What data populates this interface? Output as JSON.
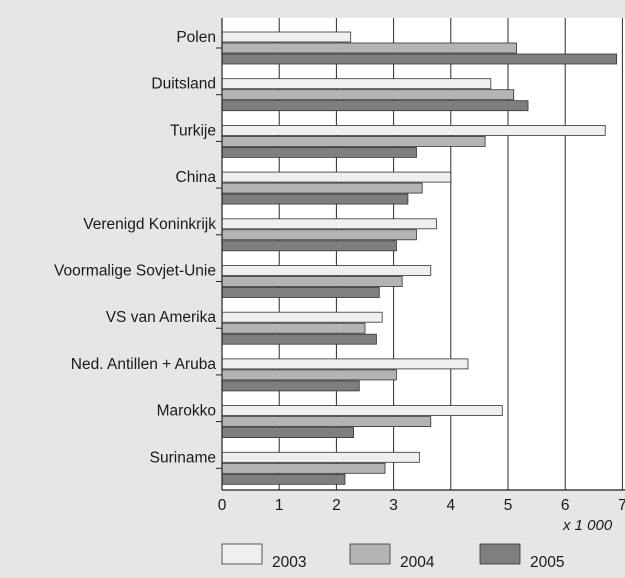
{
  "chart_data": {
    "type": "bar",
    "orientation": "horizontal",
    "categories": [
      "Polen",
      "Duitsland",
      "Turkije",
      "China",
      "Verenigd Koninkrijk",
      "Voormalige Sovjet-Unie",
      "VS van Amerika",
      "Ned. Antillen + Aruba",
      "Marokko",
      "Suriname"
    ],
    "series": [
      {
        "name": "2003",
        "color": "#efefef",
        "values": [
          2.25,
          4.7,
          6.7,
          4.0,
          3.75,
          3.65,
          2.8,
          4.3,
          4.9,
          3.45
        ]
      },
      {
        "name": "2004",
        "color": "#b4b4b4",
        "values": [
          5.15,
          5.1,
          4.6,
          3.5,
          3.4,
          3.15,
          2.5,
          3.05,
          3.65,
          2.85
        ]
      },
      {
        "name": "2005",
        "color": "#7f7f7f",
        "values": [
          6.9,
          5.35,
          3.4,
          3.25,
          3.05,
          2.75,
          2.7,
          2.4,
          2.3,
          2.15
        ]
      }
    ],
    "xlim": [
      0,
      7
    ],
    "xticks": [
      "0",
      "1",
      "2",
      "3",
      "4",
      "5",
      "6",
      "7"
    ],
    "xunit_label": "x 1 000",
    "grid": "vertical",
    "legend_position": "bottom"
  }
}
